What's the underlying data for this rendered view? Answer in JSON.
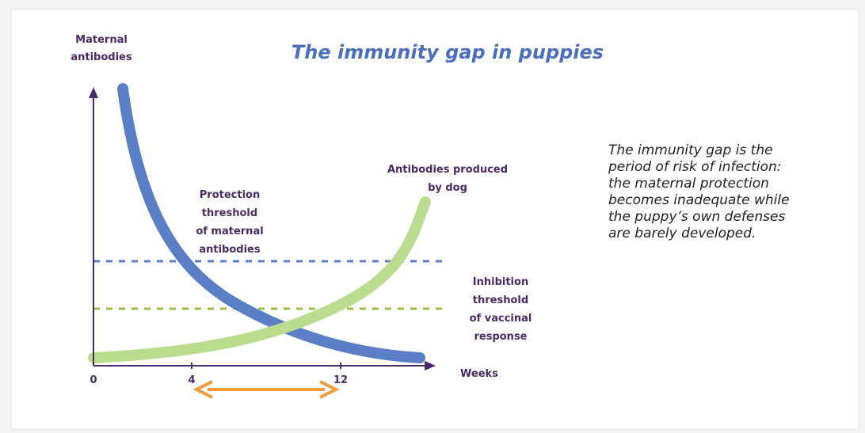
{
  "title": "The immunity gap in puppies",
  "y_axis_label": [
    "Maternal",
    "antibodies"
  ],
  "x_axis_label": "Weeks",
  "x_ticks": [
    "0",
    "4",
    "12"
  ],
  "labels": {
    "protection": [
      "Protection",
      "threshold",
      "of maternal",
      "antibodies"
    ],
    "produced": [
      "Antibodies produced",
      "by dog"
    ],
    "inhibition": [
      "Inhibition",
      "threshold",
      "of vaccinal",
      "response"
    ]
  },
  "note": [
    "The immunity gap is the",
    "period of risk of infection:",
    "the maternal protection",
    "becomes inadequate while",
    "the puppy’s own defenses",
    "are barely developed."
  ]
}
